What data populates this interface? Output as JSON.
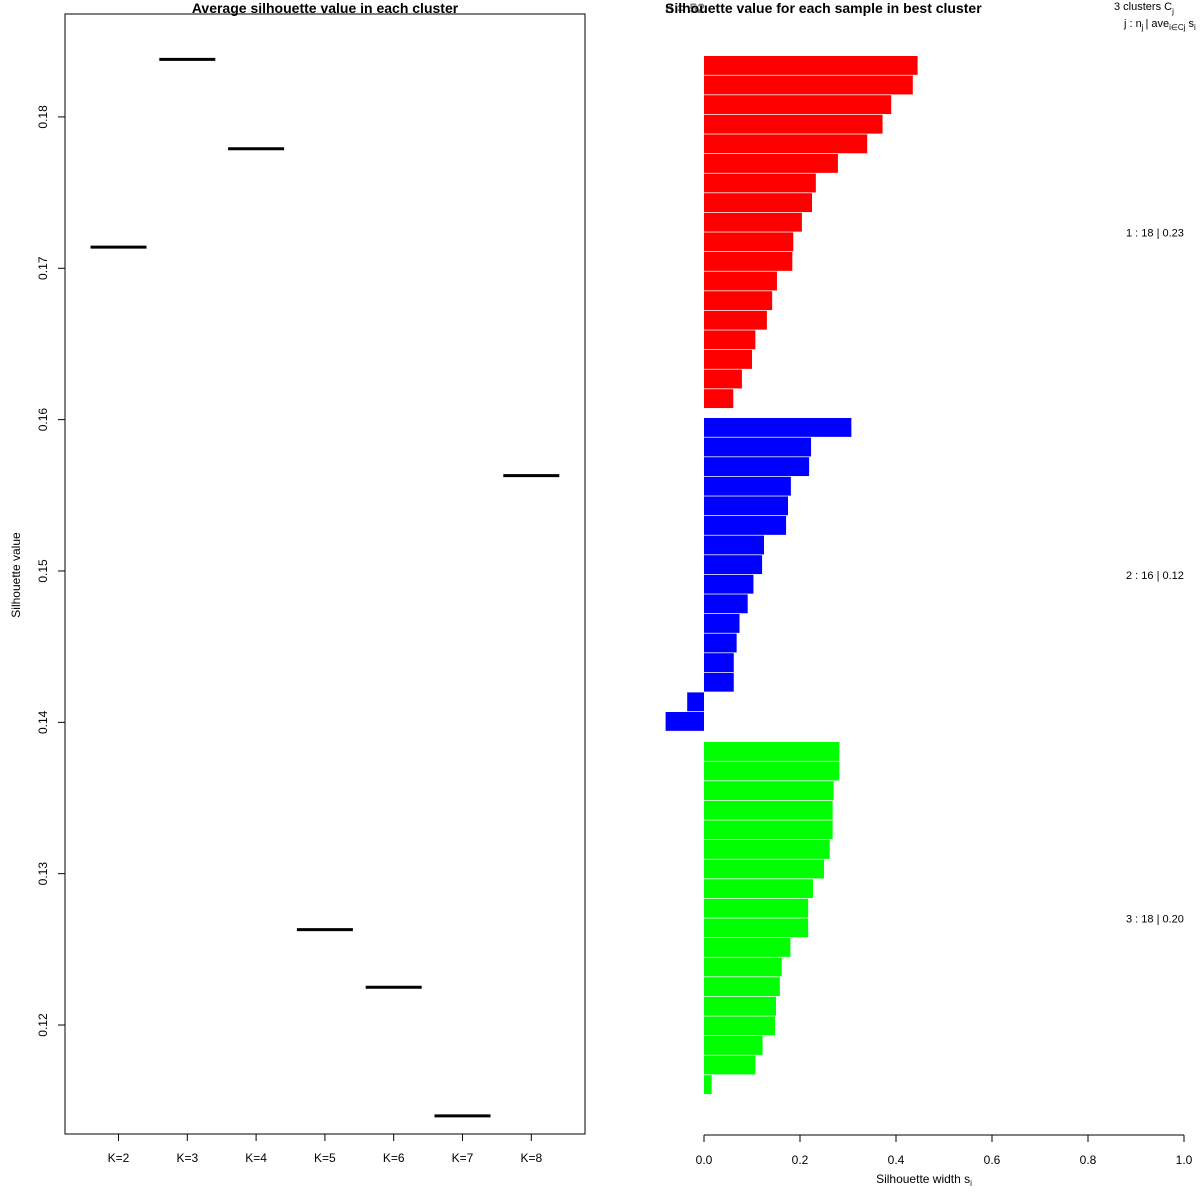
{
  "colors": {
    "cluster1": "#ff0000",
    "cluster2": "#0000ff",
    "cluster3": "#00ff00",
    "line": "#000000"
  },
  "chart_data": [
    {
      "type": "line",
      "title": "Average silhouette value in each cluster",
      "xlabel": "",
      "ylabel": "Silhouette value",
      "categories": [
        "K=2",
        "K=3",
        "K=4",
        "K=5",
        "K=6",
        "K=7",
        "K=8"
      ],
      "values": [
        0.1714,
        0.1838,
        0.1779,
        0.1263,
        0.1225,
        0.114,
        0.1563
      ],
      "yticks": [
        "0.12",
        "0.13",
        "0.14",
        "0.15",
        "0.16",
        "0.17",
        "0.18"
      ],
      "ylim": [
        0.1128,
        0.1868
      ]
    },
    {
      "type": "bar",
      "title": "Silhouette value for each sample in best cluster",
      "title_overlap": "n = 52",
      "xlabel": "Silhouette width s",
      "xlabel_sub": "i",
      "xticks": [
        "0.0",
        "0.2",
        "0.4",
        "0.6",
        "0.8",
        "1.0"
      ],
      "xlim": [
        0,
        1
      ],
      "legend_header": {
        "line1": "3  clusters  C",
        "line1_sub": "j",
        "line2": "j :  n",
        "line2_sub": "j",
        "line2_rest": "| ave",
        "line2_sub2": "i∈Cj",
        "line2_end": "s",
        "line2_end_sub": "i"
      },
      "series": [
        {
          "name": "1 :  18  |  0.23",
          "values": [
            0.445,
            0.435,
            0.39,
            0.372,
            0.34,
            0.279,
            0.233,
            0.225,
            0.204,
            0.186,
            0.184,
            0.152,
            0.142,
            0.131,
            0.107,
            0.1,
            0.079,
            0.061
          ]
        },
        {
          "name": "2 :  16  |  0.12",
          "values": [
            0.307,
            0.223,
            0.219,
            0.181,
            0.175,
            0.171,
            0.125,
            0.121,
            0.103,
            0.091,
            0.074,
            0.068,
            0.062,
            0.062,
            -0.035,
            -0.08
          ]
        },
        {
          "name": "3 :  18  |  0.20",
          "values": [
            0.282,
            0.282,
            0.27,
            0.268,
            0.268,
            0.262,
            0.25,
            0.227,
            0.217,
            0.217,
            0.18,
            0.162,
            0.158,
            0.15,
            0.148,
            0.122,
            0.107,
            0.016
          ]
        }
      ]
    }
  ]
}
